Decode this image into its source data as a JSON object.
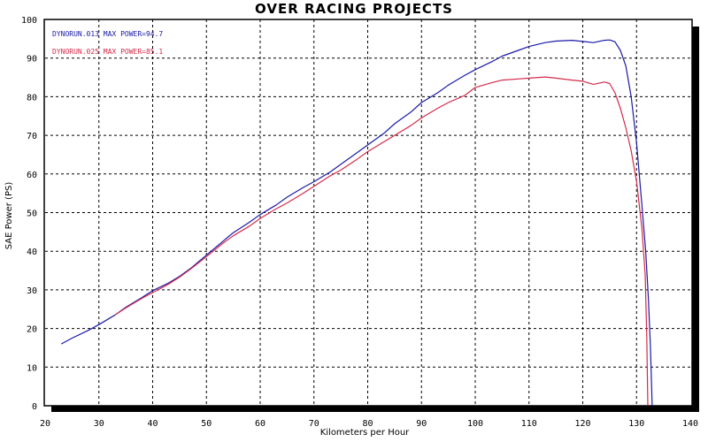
{
  "chart_data": {
    "type": "line",
    "title": "OVER RACING PROJECTS",
    "xlabel": "Kilometers per Hour",
    "ylabel": "SAE Power  (PS)",
    "xlim": [
      20,
      140
    ],
    "ylim": [
      0,
      100
    ],
    "x_ticks": [
      20,
      30,
      40,
      50,
      60,
      70,
      80,
      90,
      100,
      110,
      120,
      130,
      140
    ],
    "y_ticks": [
      0,
      10,
      20,
      30,
      40,
      50,
      60,
      70,
      80,
      90,
      100
    ],
    "grid": true,
    "legend_position": "top-left",
    "series": [
      {
        "name": "DYNORUN.013  MAX POWER=94.7",
        "color": "#1a1aa6",
        "points": [
          [
            23,
            16
          ],
          [
            25,
            17.5
          ],
          [
            28,
            19.5
          ],
          [
            30,
            21
          ],
          [
            33,
            23.5
          ],
          [
            35,
            25.5
          ],
          [
            38,
            28
          ],
          [
            40,
            29.8
          ],
          [
            43,
            31.8
          ],
          [
            45,
            33.5
          ],
          [
            47,
            35.5
          ],
          [
            50,
            39
          ],
          [
            53,
            42.5
          ],
          [
            55,
            44.8
          ],
          [
            58,
            47.5
          ],
          [
            60,
            49.5
          ],
          [
            63,
            52
          ],
          [
            65,
            54
          ],
          [
            68,
            56.5
          ],
          [
            70,
            58
          ],
          [
            73,
            60.5
          ],
          [
            75,
            62.5
          ],
          [
            78,
            65.5
          ],
          [
            80,
            67.5
          ],
          [
            83,
            70.5
          ],
          [
            85,
            73
          ],
          [
            88,
            76
          ],
          [
            90,
            78.5
          ],
          [
            93,
            81
          ],
          [
            95,
            83
          ],
          [
            98,
            85.5
          ],
          [
            100,
            87
          ],
          [
            103,
            89
          ],
          [
            105,
            90.5
          ],
          [
            108,
            92
          ],
          [
            110,
            93
          ],
          [
            113,
            94
          ],
          [
            115,
            94.4
          ],
          [
            118,
            94.6
          ],
          [
            120,
            94.3
          ],
          [
            122,
            94
          ],
          [
            124,
            94.6
          ],
          [
            125,
            94.7
          ],
          [
            126,
            94.2
          ],
          [
            127,
            92
          ],
          [
            128,
            88
          ],
          [
            129,
            80
          ],
          [
            130,
            68
          ],
          [
            131,
            52
          ],
          [
            131.7,
            40
          ],
          [
            132.2,
            28
          ],
          [
            132.6,
            15
          ],
          [
            132.9,
            0
          ]
        ]
      },
      {
        "name": "DYNORUN.025  MAX POWER=85.1",
        "color": "#d42a4a",
        "points": [
          [
            33,
            23.5
          ],
          [
            35,
            25.3
          ],
          [
            38,
            27.8
          ],
          [
            40,
            29.3
          ],
          [
            43,
            31.5
          ],
          [
            45,
            33.3
          ],
          [
            47,
            35.3
          ],
          [
            50,
            38.6
          ],
          [
            53,
            42
          ],
          [
            55,
            44
          ],
          [
            58,
            46.5
          ],
          [
            60,
            48.5
          ],
          [
            63,
            51
          ],
          [
            65,
            52.5
          ],
          [
            68,
            55
          ],
          [
            70,
            56.8
          ],
          [
            73,
            59.5
          ],
          [
            75,
            61
          ],
          [
            78,
            63.8
          ],
          [
            80,
            65.8
          ],
          [
            83,
            68.3
          ],
          [
            85,
            70
          ],
          [
            88,
            72.5
          ],
          [
            90,
            74.5
          ],
          [
            93,
            77
          ],
          [
            95,
            78.5
          ],
          [
            98,
            80.3
          ],
          [
            100,
            82.4
          ],
          [
            103,
            83.6
          ],
          [
            105,
            84.3
          ],
          [
            108,
            84.6
          ],
          [
            110,
            84.8
          ],
          [
            113,
            85.1
          ],
          [
            115,
            84.8
          ],
          [
            118,
            84.3
          ],
          [
            120,
            84
          ],
          [
            122,
            83.2
          ],
          [
            124,
            83.8
          ],
          [
            125,
            83.4
          ],
          [
            126,
            81
          ],
          [
            127,
            77
          ],
          [
            128,
            72
          ],
          [
            129,
            66
          ],
          [
            130,
            58
          ],
          [
            131,
            46
          ],
          [
            131.6,
            34
          ],
          [
            131.9,
            18
          ],
          [
            132.1,
            0
          ]
        ]
      }
    ]
  }
}
